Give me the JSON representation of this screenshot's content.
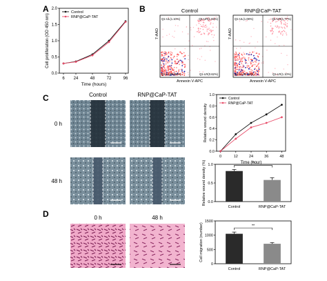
{
  "panels": {
    "A": "A",
    "B": "B",
    "C": "C",
    "D": "D"
  },
  "chart_a": {
    "type": "line",
    "x": [
      6,
      24,
      48,
      72,
      96
    ],
    "series": [
      {
        "name": "Control",
        "values": [
          0.3,
          0.36,
          0.58,
          1.0,
          1.6
        ],
        "color": "#111111"
      },
      {
        "name": "RNP@CaP-TAT",
        "values": [
          0.3,
          0.35,
          0.55,
          0.96,
          1.58
        ],
        "color": "#e84d6a"
      }
    ],
    "xlabel": "Time (hours)",
    "ylabel": "Cell proliferation (OD 450 nm)",
    "yticks": [
      "0.0",
      "0.5",
      "1.0",
      "1.5",
      "2.0"
    ],
    "ylim": [
      0,
      2
    ]
  },
  "flow": {
    "titles": [
      "Control",
      "RNP@CaP-TAT"
    ],
    "xlabel": "Annexin V-APC",
    "ylabel": "7-AAD",
    "quadrants": [
      {
        "ul": "Q1-UL(1.10%)",
        "ur": "Q1-UR(1.93%)",
        "ll": "Q1-LL(95.65%)",
        "lr": "Q1-LR(0.62%)"
      },
      {
        "ul": "Q1-UL(1.08%)",
        "ur": "Q1-UR(1.77%)",
        "ll": "Q1-LL(91.12%)",
        "lr": "Q1-LR(1.10%)"
      }
    ]
  },
  "wound": {
    "col_titles": [
      "Control",
      "RNP@CaP-TAT"
    ],
    "row_labels": [
      "0 h",
      "48 h"
    ]
  },
  "chart_c_line": {
    "type": "line",
    "x": [
      0,
      12,
      24,
      36,
      48
    ],
    "series": [
      {
        "name": "Control",
        "values": [
          0.0,
          0.3,
          0.5,
          0.65,
          0.82
        ],
        "color": "#111111"
      },
      {
        "name": "RNP@CaP-TAT",
        "values": [
          0.0,
          0.22,
          0.42,
          0.5,
          0.6
        ],
        "color": "#e84d6a"
      }
    ],
    "xlabel": "Time (hour)",
    "ylabel": "Relative wound density",
    "yticks": [
      "0.0",
      "0.2",
      "0.4",
      "0.6",
      "0.8",
      "1.0"
    ],
    "ylim": [
      0,
      1
    ]
  },
  "chart_c_bar": {
    "type": "bar",
    "categories": [
      "Control",
      "RNP@CaP-TAT"
    ],
    "values": [
      0.82,
      0.58
    ],
    "errors": [
      0.04,
      0.06
    ],
    "colors": [
      "#2a2a2a",
      "#8a8a8a"
    ],
    "ylabel": "Relative wound density (%)",
    "yticks": [
      "0.0",
      "0.5",
      "1.0"
    ],
    "ylim": [
      0,
      1
    ],
    "significance": "**"
  },
  "migration": {
    "col_titles": [
      "0 h",
      "48 h"
    ]
  },
  "chart_d_bar": {
    "type": "bar",
    "categories": [
      "Control",
      "RNP@CaP-TAT"
    ],
    "values": [
      1050,
      700
    ],
    "errors": [
      60,
      40
    ],
    "colors": [
      "#2a2a2a",
      "#8a8a8a"
    ],
    "ylabel": "Cell migration (number)",
    "yticks": [
      "0",
      "500",
      "1000",
      "1500"
    ],
    "ylim": [
      0,
      1500
    ],
    "significance": "**"
  }
}
